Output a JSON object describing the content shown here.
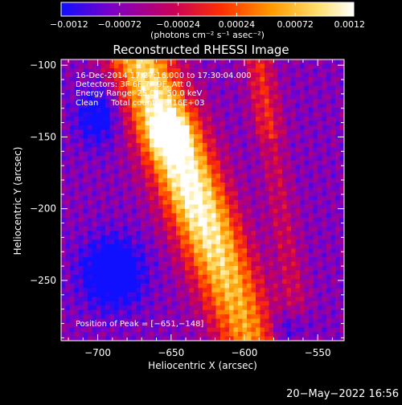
{
  "chart_data": {
    "type": "heatmap",
    "title": "Reconstructed RHESSI Image",
    "xlabel": "Heliocentric X (arcsec)",
    "ylabel": "Heliocentric Y (arcsec)",
    "xlim": [
      -725,
      -532
    ],
    "ylim": [
      -292,
      -96
    ],
    "x_ticks": [
      -700,
      -650,
      -600,
      -550
    ],
    "x_tick_labels": [
      "−700",
      "−650",
      "−600",
      "−550"
    ],
    "y_ticks": [
      -100,
      -150,
      -200,
      -250
    ],
    "y_tick_labels": [
      "−100",
      "−150",
      "−200",
      "−250"
    ],
    "colorbar": {
      "range": [
        -0.0012,
        0.0012
      ],
      "ticks": [
        -0.0012,
        -0.00072,
        -0.00024,
        0.00024,
        0.00072,
        0.0012
      ],
      "tick_labels": [
        "−0.0012",
        "−0.00072",
        "−0.00024",
        "0.00024",
        "0.00072",
        "0.0012"
      ],
      "unit_label": "(photons cm⁻² s⁻¹ asec⁻²)",
      "colormap": [
        "#1010ff",
        "#7a00c8",
        "#c8005a",
        "#ff3000",
        "#ff9a00",
        "#ffe070",
        "#ffffff"
      ]
    },
    "annotations": {
      "time_range": "16-Dec-2014 17:27:16.000 to 17:30:04.000",
      "detectors": "Detectors: 3F 6F 7F 9F, Att 0",
      "energy_range": "Energy Range: 25.0 − 50.0 keV",
      "method_counts": "Clean     Total counts: 3.16E+03",
      "peak_position": "Position of Peak = [−651,−148]"
    },
    "peak": [
      -651,
      -148
    ],
    "grid": false
  },
  "footer": {
    "date": "20−May−2022 16:56"
  }
}
